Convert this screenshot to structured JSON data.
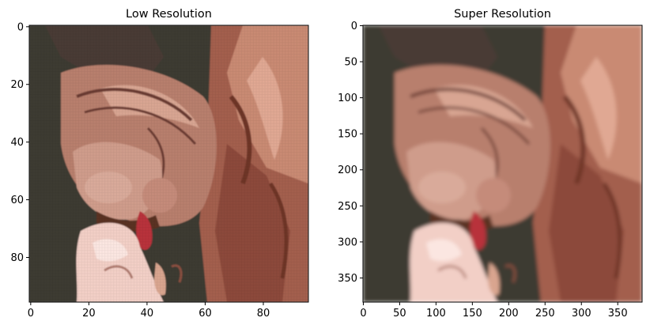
{
  "chart_data": [
    {
      "type": "image",
      "title": "Low Resolution",
      "xlim": [
        -0.5,
        95.5
      ],
      "ylim": [
        95.5,
        -0.5
      ],
      "xticks": [
        0,
        20,
        40,
        60,
        80
      ],
      "yticks": [
        0,
        20,
        40,
        60,
        80
      ],
      "grid": false,
      "content": "pixelated close-up of a hairless (sphynx) cat face licking a hand"
    },
    {
      "type": "image",
      "title": "Super Resolution",
      "xlim": [
        -0.5,
        383.5
      ],
      "ylim": [
        383.5,
        -0.5
      ],
      "xticks": [
        0,
        50,
        100,
        150,
        200,
        250,
        300,
        350
      ],
      "yticks": [
        0,
        50,
        100,
        150,
        200,
        250,
        300,
        350
      ],
      "grid": false,
      "content": "smoothed close-up of a hairless (sphynx) cat face licking a hand"
    }
  ],
  "colors": {
    "background": "#3d3b33",
    "skin": "#b87f6d",
    "skin_light": "#d8a592",
    "shadow": "#5a3024",
    "hand": "#f2cfc6",
    "tongue": "#b8323a"
  }
}
